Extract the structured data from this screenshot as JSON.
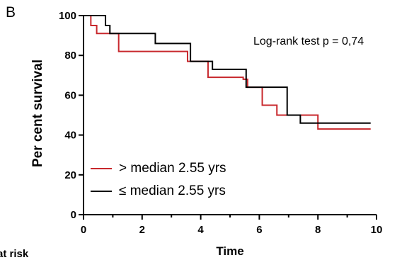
{
  "panel_label": "B",
  "chart_data": {
    "type": "line",
    "step": true,
    "title": "",
    "xlabel": "Time",
    "ylabel": "Per cent survival",
    "xlim": [
      0,
      10
    ],
    "ylim": [
      0,
      100
    ],
    "xticks": [
      "0",
      "2",
      "4",
      "6",
      "8",
      "10"
    ],
    "yticks": [
      "0",
      "20",
      "40",
      "60",
      "80",
      "100"
    ],
    "grid": false,
    "legend_position": "bottom-left",
    "annotation": "Log-rank test p = 0,74",
    "below_axis_label": "at risk",
    "series": [
      {
        "name": "> median 2.55 yrs",
        "color": "#c8282d",
        "x": [
          0,
          0.25,
          0.45,
          0.7,
          1.2,
          2.4,
          3.55,
          4.25,
          5.45,
          5.6,
          6.1,
          6.6,
          8.0,
          9.8
        ],
        "y": [
          100,
          95,
          91,
          91,
          82,
          82,
          77,
          69,
          68,
          64,
          55,
          50,
          43,
          43
        ]
      },
      {
        "name": "≤ median 2.55 yrs",
        "color": "#000000",
        "x": [
          0,
          0.75,
          0.9,
          2.45,
          3.65,
          4.4,
          5.55,
          6.95,
          7.4,
          9.8
        ],
        "y": [
          100,
          95,
          91,
          86,
          77,
          73,
          64,
          50,
          46,
          46
        ]
      }
    ]
  }
}
